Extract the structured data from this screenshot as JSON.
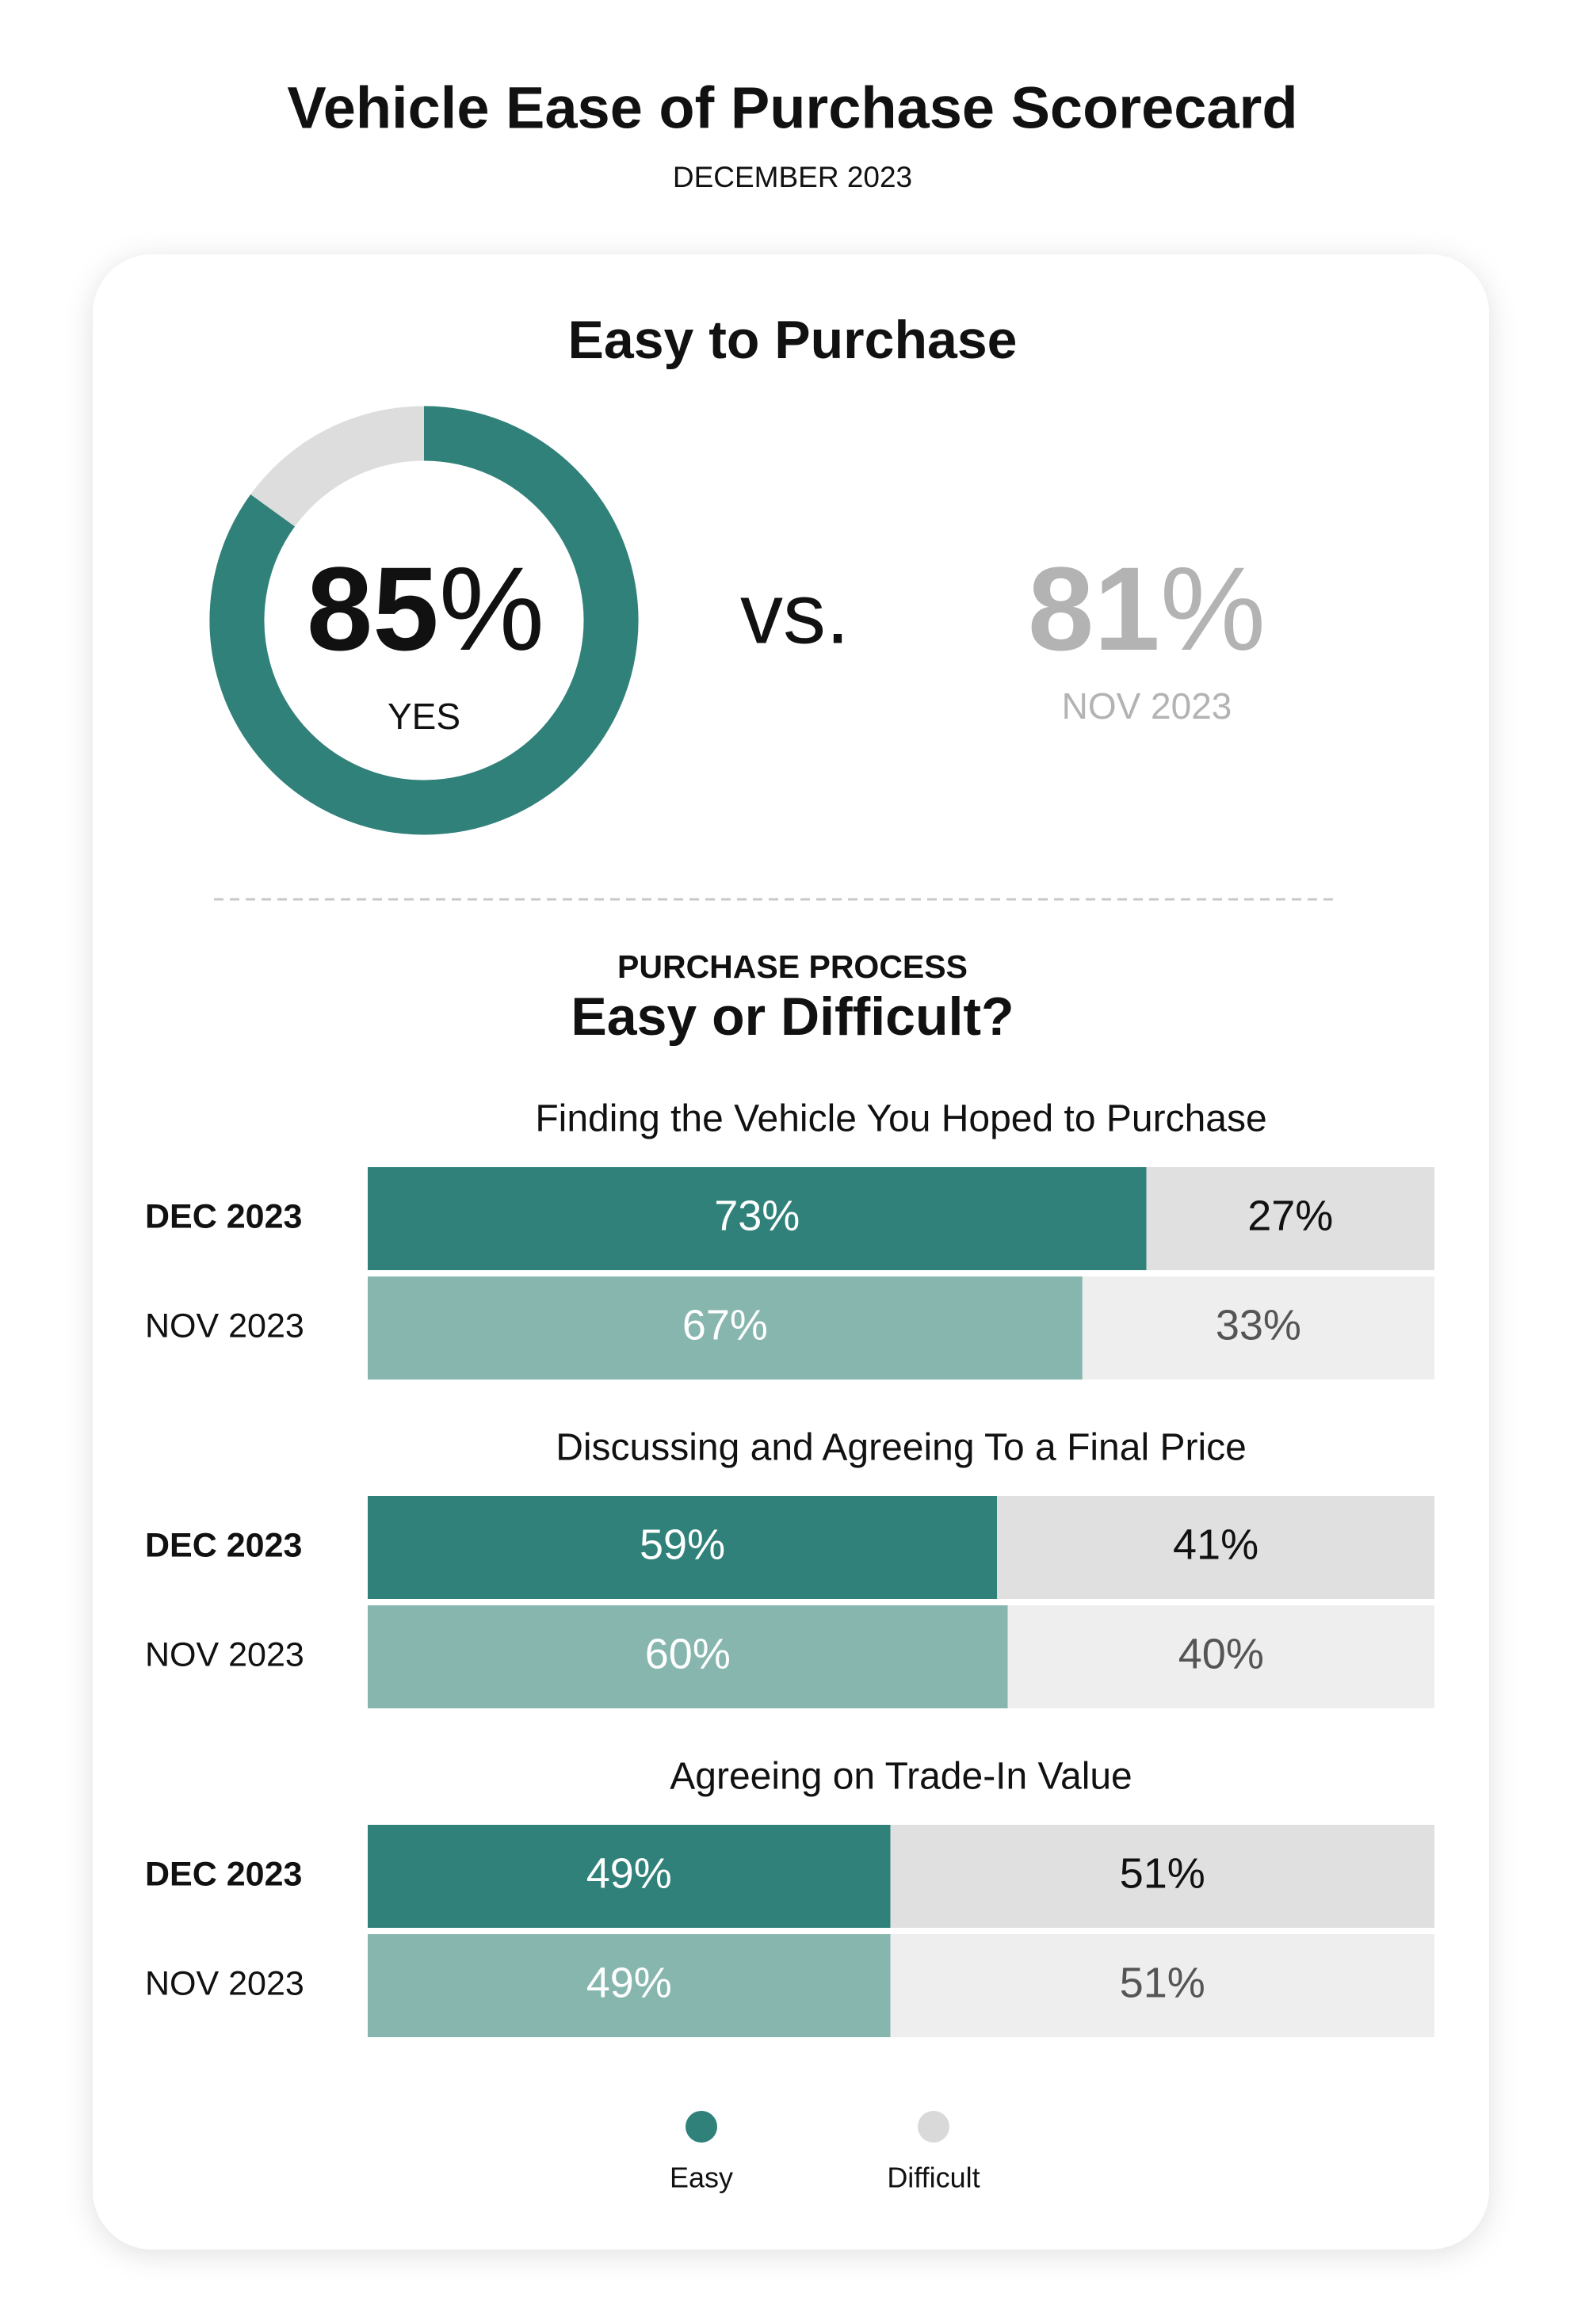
{
  "title": "Vehicle Ease of Purchase Scorecard",
  "subtitle": "DECEMBER 2023",
  "chart_data": [
    {
      "type": "donut",
      "title": "Easy to Purchase",
      "categories": [
        "YES"
      ],
      "values": [
        85
      ],
      "value_labels": [
        "85%"
      ],
      "color": "#30817a",
      "rest_color": "#dddddd",
      "comparison_word": "vs.",
      "comparison": {
        "name": "NOV 2023",
        "values": [
          81
        ],
        "value_labels": [
          "81%"
        ],
        "color": "#b3b3b3"
      }
    },
    {
      "type": "stacked-bar",
      "orientation": "horizontal",
      "kicker": "PURCHASE PROCESS",
      "title": "Easy or Difficult?",
      "xlim": [
        0,
        100
      ],
      "groups": [
        {
          "title": "Finding the Vehicle You Hoped to Purchase",
          "categories": [
            "DEC 2023",
            "NOV 2023"
          ],
          "series": [
            {
              "name": "Easy",
              "colors": [
                "#30817a",
                "#86b6ae"
              ],
              "label_colors": [
                "#ffffff",
                "#ffffff"
              ],
              "values": [
                73,
                67
              ],
              "value_labels": [
                "73%",
                "67%"
              ]
            },
            {
              "name": "Difficult",
              "colors": [
                "#e0e0e0",
                "#eeeeee"
              ],
              "label_colors": [
                "#111111",
                "#555555"
              ],
              "values": [
                27,
                33
              ],
              "value_labels": [
                "27%",
                "33%"
              ]
            }
          ]
        },
        {
          "title": "Discussing and Agreeing To a Final Price",
          "categories": [
            "DEC 2023",
            "NOV 2023"
          ],
          "series": [
            {
              "name": "Easy",
              "colors": [
                "#30817a",
                "#86b6ae"
              ],
              "label_colors": [
                "#ffffff",
                "#ffffff"
              ],
              "values": [
                59,
                60
              ],
              "value_labels": [
                "59%",
                "60%"
              ]
            },
            {
              "name": "Difficult",
              "colors": [
                "#e0e0e0",
                "#eeeeee"
              ],
              "label_colors": [
                "#111111",
                "#555555"
              ],
              "values": [
                41,
                40
              ],
              "value_labels": [
                "41%",
                "40%"
              ]
            }
          ]
        },
        {
          "title": "Agreeing on Trade-In Value",
          "categories": [
            "DEC 2023",
            "NOV 2023"
          ],
          "series": [
            {
              "name": "Easy",
              "colors": [
                "#30817a",
                "#86b6ae"
              ],
              "label_colors": [
                "#ffffff",
                "#ffffff"
              ],
              "values": [
                49,
                49
              ],
              "value_labels": [
                "49%",
                "49%"
              ]
            },
            {
              "name": "Difficult",
              "colors": [
                "#e0e0e0",
                "#eeeeee"
              ],
              "label_colors": [
                "#111111",
                "#555555"
              ],
              "values": [
                51,
                51
              ],
              "value_labels": [
                "51%",
                "51%"
              ]
            }
          ]
        }
      ],
      "legend": [
        {
          "name": "Easy",
          "color": "#30817a"
        },
        {
          "name": "Difficult",
          "color": "#d9d9d9"
        }
      ]
    }
  ]
}
